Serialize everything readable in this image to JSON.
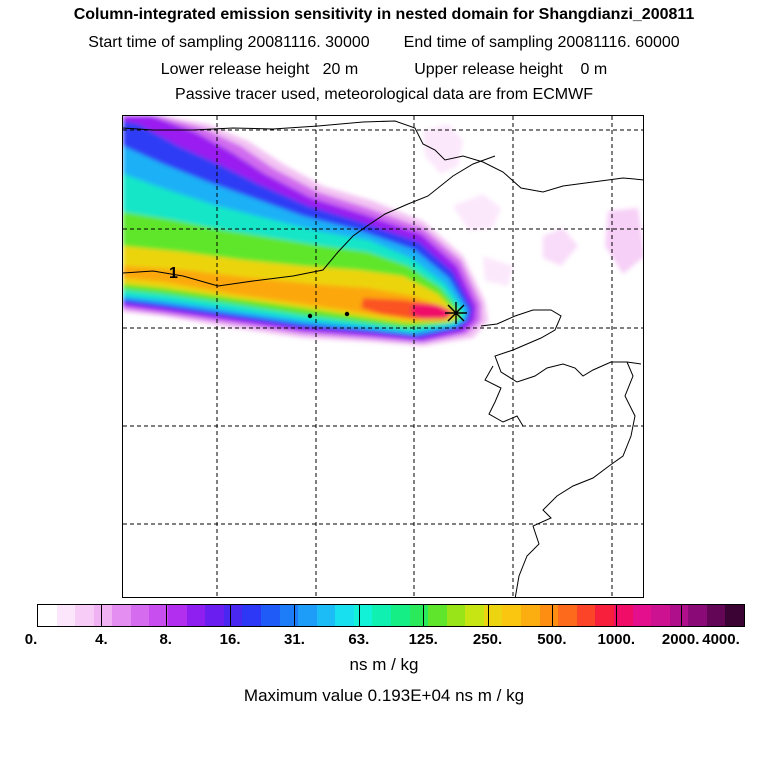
{
  "header": {
    "title": "Column-integrated emission sensitivity in nested domain for Shangdianzi_200811",
    "start_label": "Start time of sampling 20081116. 30000",
    "end_label": "End time of sampling 20081116. 60000",
    "lower_label": "Lower release height   20 m",
    "upper_label": "Upper release height    0 m",
    "tracer_note": "Passive tracer used, meteorological data are from ECMWF"
  },
  "chart_data": {
    "type": "heatmap",
    "title": "Column-integrated emission sensitivity in nested domain for Shangdianzi_200811",
    "sampling_start": "20081116. 30000",
    "sampling_end": "20081116. 60000",
    "lower_release_height_m": 20,
    "upper_release_height_m": 0,
    "contour_label": "1",
    "colorbar": {
      "unit_label": "ns m / kg",
      "ticks": [
        "0.",
        "4.",
        "8.",
        "16.",
        "31.",
        "63.",
        "125.",
        "250.",
        "500.",
        "1000.",
        "2000.",
        "4000."
      ],
      "colors": [
        "#ffffff",
        "#fce6fc",
        "#f7cdf7",
        "#f1b2f3",
        "#e38ef0",
        "#d56cef",
        "#c84ef0",
        "#b22ff0",
        "#8f1ef0",
        "#6a1ef0",
        "#4a28f2",
        "#2c38f5",
        "#1f5bf7",
        "#1d7cf8",
        "#1d9cf8",
        "#1cbdf6",
        "#19e0ee",
        "#12f2d6",
        "#10f0b0",
        "#14ee85",
        "#2ae95a",
        "#5fe62c",
        "#98e419",
        "#c6e513",
        "#ecd411",
        "#fac60f",
        "#fcad0f",
        "#fd8e12",
        "#fd6a1c",
        "#fb4428",
        "#f71f3c",
        "#f00d68",
        "#e30f8c",
        "#cc1191",
        "#b00f8c",
        "#8a0a78",
        "#620655",
        "#3a0333"
      ]
    },
    "max_value_text": "Maximum value  0.193E+04 ns m / kg",
    "max_value": 1930
  }
}
